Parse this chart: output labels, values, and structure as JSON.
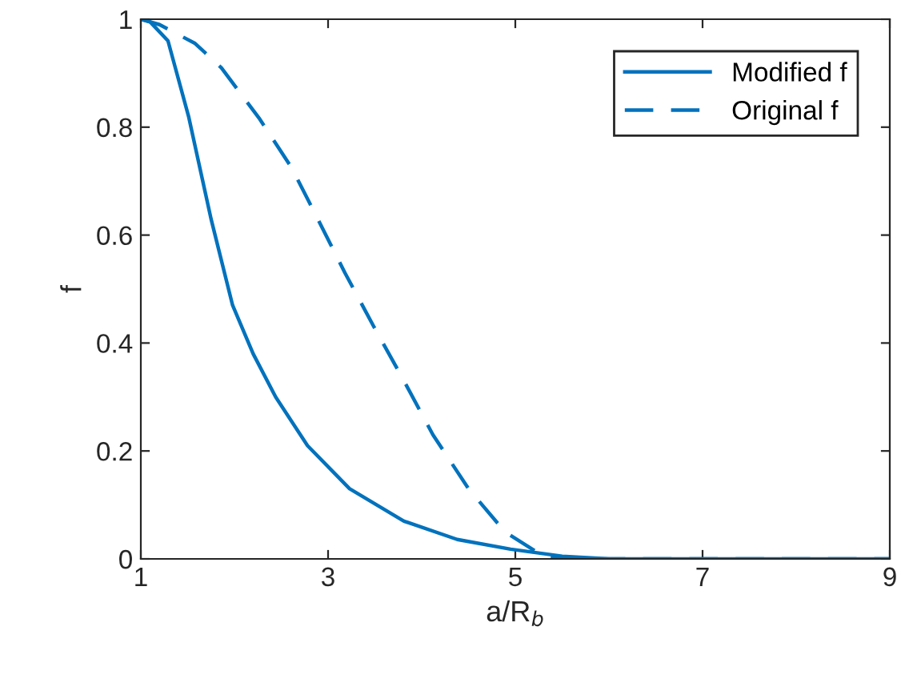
{
  "chart_data": {
    "type": "line",
    "xlabel": "a/R$_{b}$",
    "ylabel": "f",
    "xlim": [
      1,
      9
    ],
    "ylim": [
      0,
      1
    ],
    "xticks": [
      1,
      3,
      5,
      7,
      9
    ],
    "yticks": [
      0,
      0.2,
      0.4,
      0.6,
      0.8,
      1
    ],
    "grid": false,
    "legend": "top right",
    "marker": "none",
    "series": [
      {
        "name": "Modified f",
        "color": "#0072bd",
        "line_style": "solid",
        "x": [
          1,
          1.1,
          1.29,
          1.51,
          1.75,
          1.98,
          2.2,
          2.44,
          2.78,
          3.23,
          3.81,
          4.38,
          4.95,
          5.5,
          6,
          7,
          8,
          9
        ],
        "values": [
          1,
          0.995,
          0.96,
          0.82,
          0.63,
          0.47,
          0.38,
          0.3,
          0.21,
          0.13,
          0.07,
          0.036,
          0.018,
          0.005,
          0,
          0,
          0,
          0
        ]
      },
      {
        "name": "Original f",
        "color": "#0072bd",
        "line_style": "dashed",
        "x": [
          1,
          1.2,
          1.58,
          1.86,
          2.27,
          2.61,
          2.89,
          3.18,
          3.49,
          3.81,
          4.12,
          4.5,
          4.89,
          5.29,
          5.6,
          7,
          8,
          9
        ],
        "values": [
          1,
          0.99,
          0.955,
          0.91,
          0.815,
          0.725,
          0.63,
          0.53,
          0.43,
          0.33,
          0.23,
          0.13,
          0.05,
          0.006,
          0,
          0,
          0,
          0
        ]
      }
    ]
  }
}
